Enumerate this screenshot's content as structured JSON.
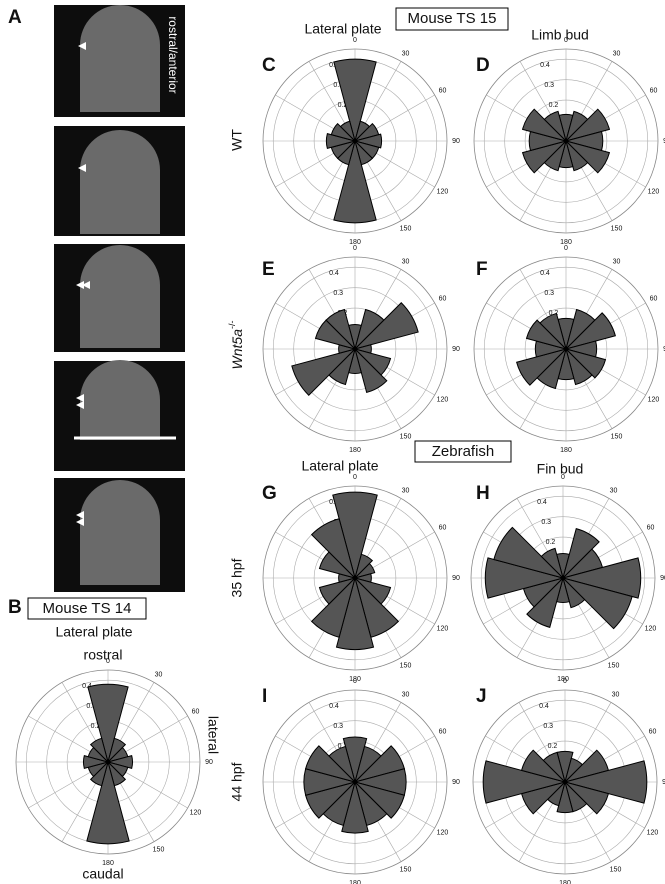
{
  "labels": {
    "panel_a": "A",
    "panel_b": "B",
    "rostral_anterior": "rostral/anterior",
    "mouse_ts14": "Mouse TS 14",
    "mouse_ts15": "Mouse TS 15",
    "zebrafish": "Zebrafish",
    "b_lateral_plate": "Lateral plate",
    "rostral": "rostral",
    "caudal": "caudal",
    "lateral": "lateral",
    "col_lateral_plate": "Lateral plate",
    "col_limb_bud": "Limb bud",
    "col_lateral_plate_zf": "Lateral plate",
    "col_fin_bud": "Fin bud",
    "wt": "WT",
    "wnt5a": "Wnt5a",
    "wnt5a_sup": "-/-",
    "hpf35": "35 hpf",
    "hpf44": "44 hpf"
  },
  "chart_data": [
    {
      "type": "rose",
      "panel": "B",
      "angles": [
        0,
        30,
        60,
        90,
        120,
        150,
        180,
        210,
        240,
        270,
        300,
        330
      ],
      "values": [
        0.38,
        0.12,
        0.1,
        0.12,
        0.1,
        0.12,
        0.4,
        0.12,
        0.1,
        0.12,
        0.1,
        0.12
      ],
      "rlim": [
        0,
        0.45
      ],
      "rticks": [
        0.2,
        0.3,
        0.4
      ],
      "thetaticks": [
        0,
        30,
        60,
        90,
        120,
        150,
        180
      ],
      "color": "#555555"
    },
    {
      "type": "rose",
      "panel": "C",
      "angles": [
        0,
        30,
        60,
        90,
        120,
        150,
        180,
        210,
        240,
        270,
        300,
        330
      ],
      "values": [
        0.4,
        0.1,
        0.12,
        0.13,
        0.12,
        0.12,
        0.4,
        0.12,
        0.12,
        0.14,
        0.12,
        0.1
      ],
      "rlim": [
        0,
        0.45
      ],
      "rticks": [
        0.2,
        0.3,
        0.4
      ],
      "thetaticks": [
        0,
        30,
        60,
        90,
        120,
        150,
        180
      ],
      "color": "#555555"
    },
    {
      "type": "rose",
      "panel": "D",
      "angles": [
        0,
        30,
        60,
        90,
        120,
        150,
        180,
        210,
        240,
        270,
        300,
        330
      ],
      "values": [
        0.13,
        0.15,
        0.22,
        0.18,
        0.22,
        0.15,
        0.13,
        0.15,
        0.22,
        0.18,
        0.22,
        0.15
      ],
      "rlim": [
        0,
        0.45
      ],
      "rticks": [
        0.2,
        0.3,
        0.4
      ],
      "thetaticks": [
        0,
        30,
        60,
        90,
        120,
        150,
        180
      ],
      "color": "#555555"
    },
    {
      "type": "rose",
      "panel": "E",
      "angles": [
        0,
        30,
        60,
        90,
        120,
        150,
        180,
        210,
        240,
        270,
        300,
        330
      ],
      "values": [
        0.12,
        0.2,
        0.32,
        0.08,
        0.18,
        0.22,
        0.12,
        0.18,
        0.32,
        0.08,
        0.2,
        0.2
      ],
      "rlim": [
        0,
        0.45
      ],
      "rticks": [
        0.2,
        0.3,
        0.4
      ],
      "thetaticks": [
        0,
        30,
        60,
        90,
        120,
        150,
        180
      ],
      "color": "#555555"
    },
    {
      "type": "rose",
      "panel": "F",
      "angles": [
        0,
        30,
        60,
        90,
        120,
        150,
        180,
        210,
        240,
        270,
        300,
        330
      ],
      "values": [
        0.15,
        0.2,
        0.25,
        0.15,
        0.2,
        0.18,
        0.15,
        0.2,
        0.25,
        0.15,
        0.2,
        0.18
      ],
      "rlim": [
        0,
        0.45
      ],
      "rticks": [
        0.2,
        0.3,
        0.4
      ],
      "thetaticks": [
        0,
        30,
        60,
        90,
        120,
        150,
        180
      ],
      "color": "#555555"
    },
    {
      "type": "rose",
      "panel": "G",
      "angles": [
        0,
        30,
        60,
        90,
        120,
        150,
        180,
        210,
        240,
        270,
        300,
        330
      ],
      "values": [
        0.42,
        0.12,
        0.1,
        0.08,
        0.18,
        0.3,
        0.35,
        0.3,
        0.18,
        0.08,
        0.18,
        0.3
      ],
      "rlim": [
        0,
        0.45
      ],
      "rticks": [
        0.2,
        0.3,
        0.4
      ],
      "thetaticks": [
        0,
        30,
        60,
        90,
        120,
        150,
        180
      ],
      "color": "#555555"
    },
    {
      "type": "rose",
      "panel": "H",
      "angles": [
        0,
        30,
        60,
        90,
        120,
        150,
        180,
        210,
        240,
        270,
        300,
        330
      ],
      "values": [
        0.12,
        0.25,
        0.2,
        0.38,
        0.35,
        0.15,
        0.12,
        0.25,
        0.2,
        0.38,
        0.35,
        0.15
      ],
      "rlim": [
        0,
        0.45
      ],
      "rticks": [
        0.2,
        0.3,
        0.4
      ],
      "thetaticks": [
        0,
        30,
        60,
        90,
        120,
        150,
        180
      ],
      "color": "#555555"
    },
    {
      "type": "rose",
      "panel": "I",
      "angles": [
        0,
        30,
        60,
        90,
        120,
        150,
        180,
        210,
        240,
        270,
        300,
        330
      ],
      "values": [
        0.22,
        0.18,
        0.25,
        0.25,
        0.25,
        0.22,
        0.25,
        0.22,
        0.25,
        0.25,
        0.25,
        0.18
      ],
      "rlim": [
        0,
        0.45
      ],
      "rticks": [
        0.2,
        0.3,
        0.4
      ],
      "thetaticks": [
        0,
        30,
        60,
        90,
        120,
        150,
        180
      ],
      "color": "#555555"
    },
    {
      "type": "rose",
      "panel": "J",
      "angles": [
        0,
        30,
        60,
        90,
        120,
        150,
        180,
        210,
        240,
        270,
        300,
        330
      ],
      "values": [
        0.15,
        0.12,
        0.22,
        0.4,
        0.22,
        0.15,
        0.15,
        0.12,
        0.22,
        0.4,
        0.22,
        0.15
      ],
      "rlim": [
        0,
        0.45
      ],
      "rticks": [
        0.2,
        0.3,
        0.4
      ],
      "thetaticks": [
        0,
        30,
        60,
        90,
        120,
        150,
        180
      ],
      "color": "#555555"
    }
  ]
}
